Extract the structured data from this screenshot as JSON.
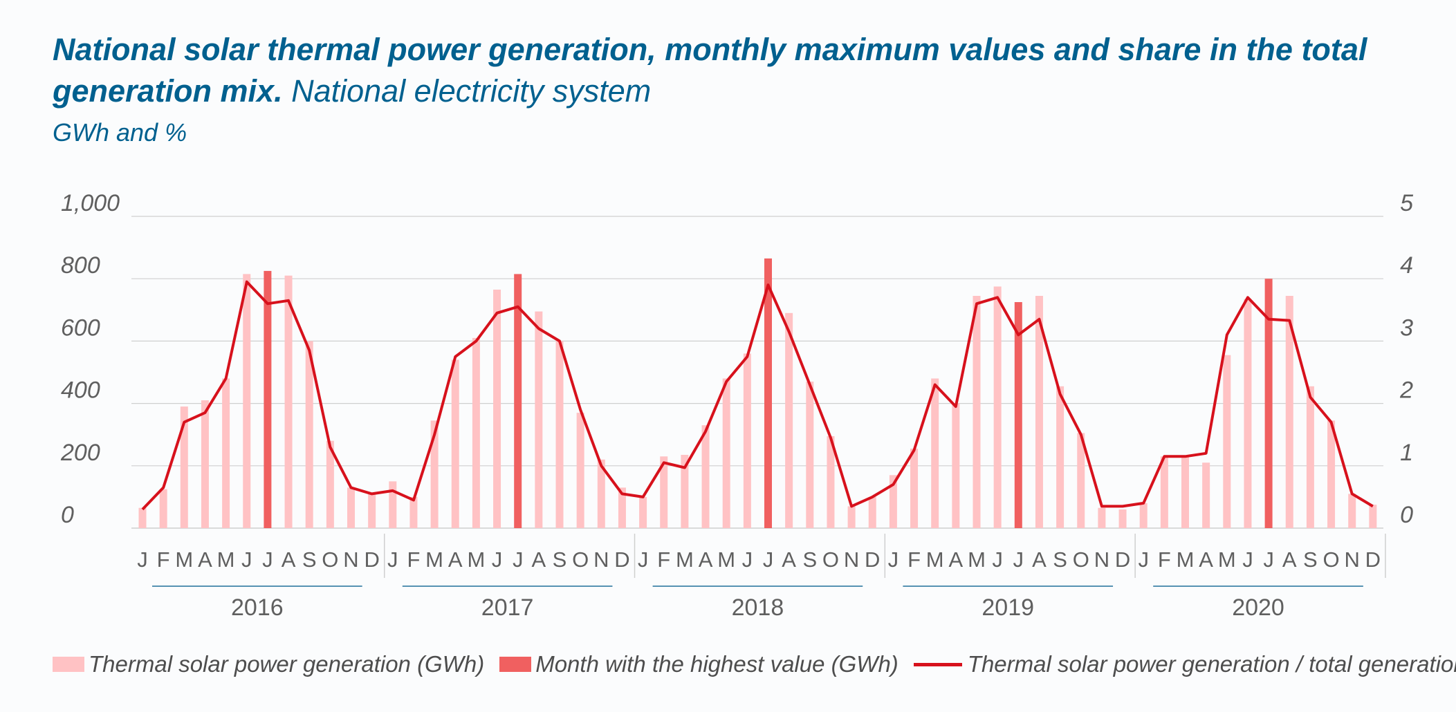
{
  "title": {
    "bold": "National solar thermal power generation, monthly maximum values and share in the total",
    "bold_cont": "generation mix.",
    "light": " National electricity system",
    "units": "GWh and %"
  },
  "legend": {
    "gen": "Thermal solar power generation (GWh)",
    "max": "Month with the highest value (GWh)",
    "share": "Thermal solar power generation / total generation (%)"
  },
  "colors": {
    "light_bar": "#ffc2c4",
    "highlight_bar": "#f06060",
    "line": "#d7111c",
    "title": "#00608f",
    "axis_text": "#5f5f5f",
    "gridline": "#cfcfcf",
    "year_rule": "#1f6f9a"
  },
  "chart_data": {
    "type": "bar",
    "title": "National solar thermal power generation, monthly maximum values and share in the total generation mix. National electricity system",
    "ylabel": "GWh and %",
    "ylim": [
      0,
      1000
    ],
    "y2lim": [
      0,
      5
    ],
    "y_ticks": [
      "0",
      "200",
      "400",
      "600",
      "800",
      "1,000"
    ],
    "y2_ticks": [
      "0",
      "1",
      "2",
      "3",
      "4",
      "5"
    ],
    "month_labels": [
      "J",
      "F",
      "M",
      "A",
      "M",
      "J",
      "J",
      "A",
      "S",
      "O",
      "N",
      "D"
    ],
    "years": [
      "2016",
      "2017",
      "2018",
      "2019",
      "2020"
    ],
    "grid": true,
    "legend_position": "bottom",
    "series": [
      {
        "name": "Thermal solar power generation (GWh)",
        "type": "bar",
        "axis": "left",
        "values": [
          65,
          125,
          390,
          410,
          480,
          815,
          825,
          810,
          600,
          280,
          130,
          110,
          150,
          100,
          345,
          540,
          610,
          765,
          815,
          695,
          600,
          370,
          220,
          130,
          100,
          230,
          235,
          330,
          480,
          560,
          865,
          690,
          470,
          295,
          70,
          100,
          170,
          255,
          480,
          400,
          745,
          775,
          725,
          745,
          455,
          305,
          65,
          60,
          80,
          230,
          230,
          210,
          555,
          735,
          800,
          745,
          455,
          345,
          110,
          75
        ]
      },
      {
        "name": "Month with the highest value (GWh)",
        "type": "bar",
        "axis": "left",
        "highlight_months": [
          {
            "year": "2016",
            "month": "J",
            "value": 825
          },
          {
            "year": "2017",
            "month": "J",
            "value": 815
          },
          {
            "year": "2018",
            "month": "J",
            "value": 865
          },
          {
            "year": "2019",
            "month": "J",
            "value": 775
          },
          {
            "year": "2020",
            "month": "J",
            "value": 800
          }
        ]
      },
      {
        "name": "Thermal solar power generation / total generation (%)",
        "type": "line",
        "axis": "right",
        "values": [
          0.3,
          0.65,
          1.7,
          1.85,
          2.4,
          3.95,
          3.6,
          3.65,
          2.85,
          1.3,
          0.65,
          0.55,
          0.6,
          0.45,
          1.5,
          2.75,
          3.0,
          3.45,
          3.55,
          3.2,
          3.0,
          1.9,
          1.0,
          0.55,
          0.5,
          1.05,
          0.97,
          1.55,
          2.35,
          2.75,
          3.9,
          3.15,
          2.3,
          1.45,
          0.35,
          0.5,
          0.7,
          1.25,
          2.3,
          1.95,
          3.6,
          3.7,
          3.1,
          3.35,
          2.15,
          1.5,
          0.35,
          0.35,
          0.4,
          1.15,
          1.15,
          1.2,
          3.1,
          3.7,
          3.35,
          3.33,
          2.1,
          1.7,
          0.55,
          0.35
        ]
      }
    ]
  }
}
